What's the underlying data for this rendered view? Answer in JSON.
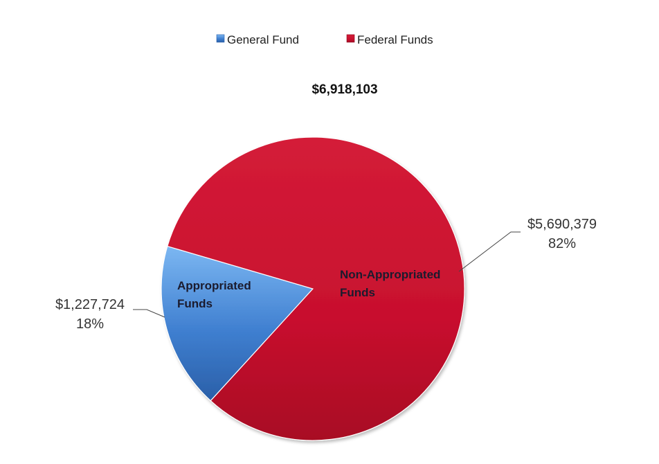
{
  "chart_data": {
    "type": "pie",
    "title": "$6,918,103",
    "legend_position": "top",
    "legend": [
      {
        "label": "General Fund",
        "color": "#3f7fd0"
      },
      {
        "label": "Federal Funds",
        "color": "#c8102e"
      }
    ],
    "slices": [
      {
        "name": "General Fund",
        "category_label": "Appropriated\nFunds",
        "value": 1227724,
        "value_label": "$1,227,724",
        "percent_label": "18%",
        "color": "#3f7fd0"
      },
      {
        "name": "Federal Funds",
        "category_label": "Non-Appropriated\nFunds",
        "value": 5690379,
        "value_label": "$5,690,379",
        "percent_label": "82%",
        "color": "#c8102e"
      }
    ]
  }
}
